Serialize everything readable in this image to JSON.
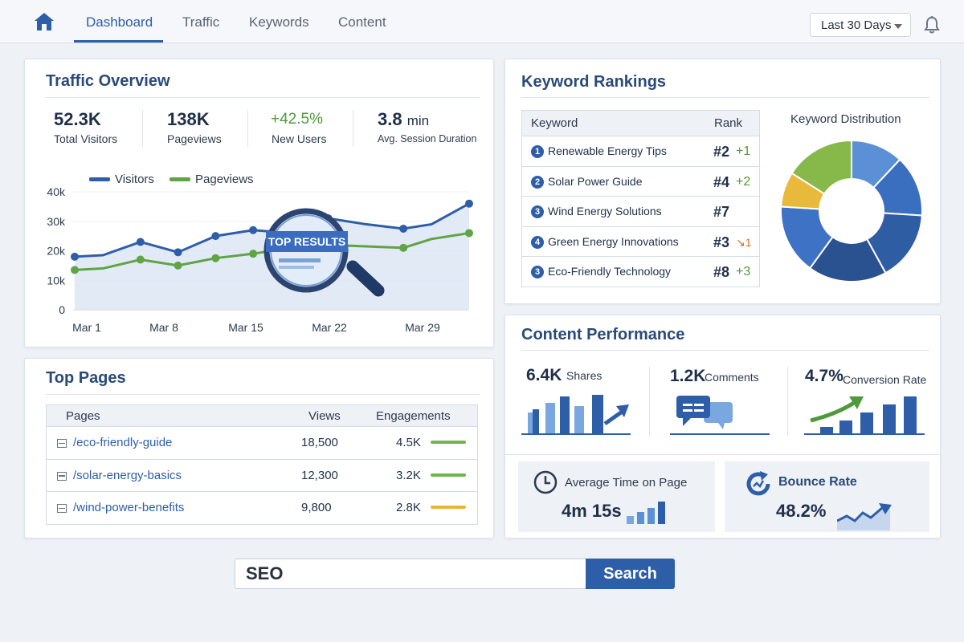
{
  "nav": {
    "tabs": [
      "Dashboard",
      "Traffic",
      "Keywords",
      "Content"
    ],
    "active_tab": "Dashboard",
    "date_range": "Last 30 Days",
    "accent_color": "#2e5ea8"
  },
  "traffic": {
    "title": "Traffic Overview",
    "stats": [
      {
        "value": "52.3K",
        "label": "Total Visitors"
      },
      {
        "value": "138K",
        "label": "Pageviews"
      },
      {
        "value": "+42.5%",
        "label": "New Users"
      },
      {
        "value": "3.8",
        "unit": "min",
        "label": "Avg. Session Duration"
      }
    ],
    "magnifier_text": "TOP RESULTS"
  },
  "chart_data": {
    "type": "line",
    "series": [
      {
        "name": "Visitors",
        "color": "#2e5ea8",
        "values": [
          18,
          18.5,
          23,
          19.5,
          25,
          27,
          26,
          31,
          29,
          27.5,
          29,
          36
        ]
      },
      {
        "name": "Pageviews",
        "color": "#5fa446",
        "values": [
          13.5,
          14,
          17,
          15,
          17.5,
          19,
          21,
          22,
          21.5,
          21,
          24,
          26
        ]
      }
    ],
    "x": [
      0,
      3,
      7,
      11,
      15,
      19,
      23,
      27,
      31,
      35,
      38,
      42
    ],
    "xticks": [
      "Mar 1",
      "Mar 8",
      "Mar 15",
      "Mar 22",
      "Mar 29"
    ],
    "yticks": [
      "0",
      "10k",
      "20k",
      "30k",
      "40k"
    ],
    "ylim": [
      0,
      40
    ],
    "legend": "top-left"
  },
  "keywords": {
    "title": "Keyword Rankings",
    "col_keyword": "Keyword",
    "col_rank": "Rank",
    "rows": [
      {
        "n": "1",
        "keyword": "Renewable Energy Tips",
        "rank": "#2",
        "delta": "+1",
        "dir": "up"
      },
      {
        "n": "2",
        "keyword": "Solar Power Guide",
        "rank": "#4",
        "delta": "+2",
        "dir": "up"
      },
      {
        "n": "3",
        "keyword": "Wind Energy Solutions",
        "rank": "#7",
        "delta": "",
        "dir": "none"
      },
      {
        "n": "4",
        "keyword": "Green Energy Innovations",
        "rank": "#3",
        "delta": "1",
        "dir": "down"
      },
      {
        "n": "3",
        "keyword": "Eco-Friendly Technology",
        "rank": "#8",
        "delta": "+3",
        "dir": "up"
      }
    ],
    "distribution_title": "Keyword Distribution",
    "distribution": [
      {
        "value": 12,
        "color": "#5b8fd6"
      },
      {
        "value": 14,
        "color": "#3a6fc0"
      },
      {
        "value": 16,
        "color": "#2f5da3"
      },
      {
        "value": 18,
        "color": "#2a5190"
      },
      {
        "value": 16,
        "color": "#3d72c4"
      },
      {
        "value": 8,
        "color": "#e8b93a"
      },
      {
        "value": 16,
        "color": "#86b84a"
      }
    ]
  },
  "top_pages": {
    "title": "Top Pages",
    "col_pages": "Pages",
    "col_views": "Views",
    "col_engagements": "Engagements",
    "rows": [
      {
        "page": "/eco-friendly-guide",
        "views": "18,500",
        "engagements": "4.5K",
        "bar_color": "#6fb64f",
        "level": 0.8
      },
      {
        "page": "/solar-energy-basics",
        "views": "12,300",
        "engagements": "3.2K",
        "bar_color": "#6fb64f",
        "level": 0.8
      },
      {
        "page": "/wind-power-benefits",
        "views": "9,800",
        "engagements": "2.8K",
        "bar_color": "#e6b832",
        "level": 0.8
      }
    ]
  },
  "content": {
    "title": "Content Performance",
    "shares_value": "6.4K",
    "shares_label": "Shares",
    "comments_value": "1.2K",
    "comments_label": "Comments",
    "conversion_value": "4.7%",
    "conversion_label": "Conversion Rate",
    "avg_time_title": "Average Time on Page",
    "avg_time_value": "4m 15s",
    "bounce_title": "Bounce Rate",
    "bounce_value": "48.2%"
  },
  "search": {
    "value": "SEO",
    "button_label": "Search"
  }
}
